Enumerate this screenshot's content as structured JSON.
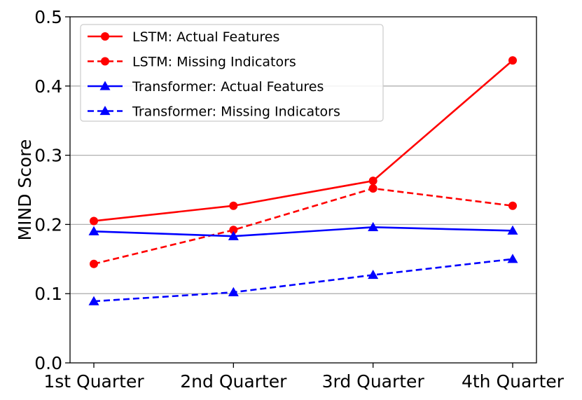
{
  "chart_data": {
    "type": "line",
    "title": "",
    "xlabel": "",
    "ylabel": "MIND Score",
    "categories": [
      "1st Quarter",
      "2nd Quarter",
      "3rd Quarter",
      "4th Quarter"
    ],
    "ylim": [
      0.0,
      0.5
    ],
    "yticks": [
      "0.0",
      "0.1",
      "0.2",
      "0.3",
      "0.4",
      "0.5"
    ],
    "grid": "horizontal",
    "legend_position": "top-left",
    "series": [
      {
        "name": "LSTM: Actual Features",
        "values": [
          0.205,
          0.227,
          0.263,
          0.437
        ],
        "color": "#ff0000",
        "dash": "solid",
        "marker": "circle"
      },
      {
        "name": "LSTM: Missing Indicators",
        "values": [
          0.143,
          0.192,
          0.252,
          0.227
        ],
        "color": "#ff0000",
        "dash": "dashed",
        "marker": "circle"
      },
      {
        "name": "Transformer: Actual Features",
        "values": [
          0.19,
          0.183,
          0.196,
          0.191
        ],
        "color": "#0000ff",
        "dash": "solid",
        "marker": "triangle"
      },
      {
        "name": "Transformer: Missing Indicators",
        "values": [
          0.089,
          0.102,
          0.127,
          0.15
        ],
        "color": "#0000ff",
        "dash": "dashed",
        "marker": "triangle"
      }
    ]
  }
}
